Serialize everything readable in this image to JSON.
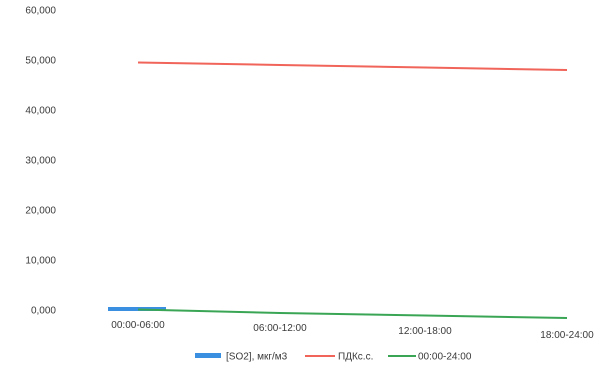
{
  "chart_data": {
    "type": "line",
    "categories": [
      "00:00-06:00",
      "06:00-12:00",
      "12:00-18:00",
      "18:00-24:00"
    ],
    "ylim": [
      0,
      60
    ],
    "yticks": [
      {
        "value": 0,
        "label": "0,000"
      },
      {
        "value": 10,
        "label": "10,000"
      },
      {
        "value": 20,
        "label": "20,000"
      },
      {
        "value": 30,
        "label": "30,000"
      },
      {
        "value": 40,
        "label": "40,000"
      },
      {
        "value": 50,
        "label": "50,000"
      },
      {
        "value": 60,
        "label": "60,000"
      }
    ],
    "grid": false,
    "legend": "bottom",
    "series": [
      {
        "name": "[SO2], мкг/м3",
        "kind": "bar-segment",
        "color": "#3b8fe0",
        "values": [
          0.2,
          null,
          null,
          null
        ]
      },
      {
        "name": "ПДКс.с.",
        "kind": "line",
        "color": "#f0645a",
        "values": [
          49.5,
          49.0,
          48.5,
          48.0
        ]
      },
      {
        "name": "00:00-24:00",
        "kind": "line",
        "color": "#3aa655",
        "values": [
          0.1,
          -0.6,
          -1.1,
          -1.6
        ]
      }
    ]
  }
}
